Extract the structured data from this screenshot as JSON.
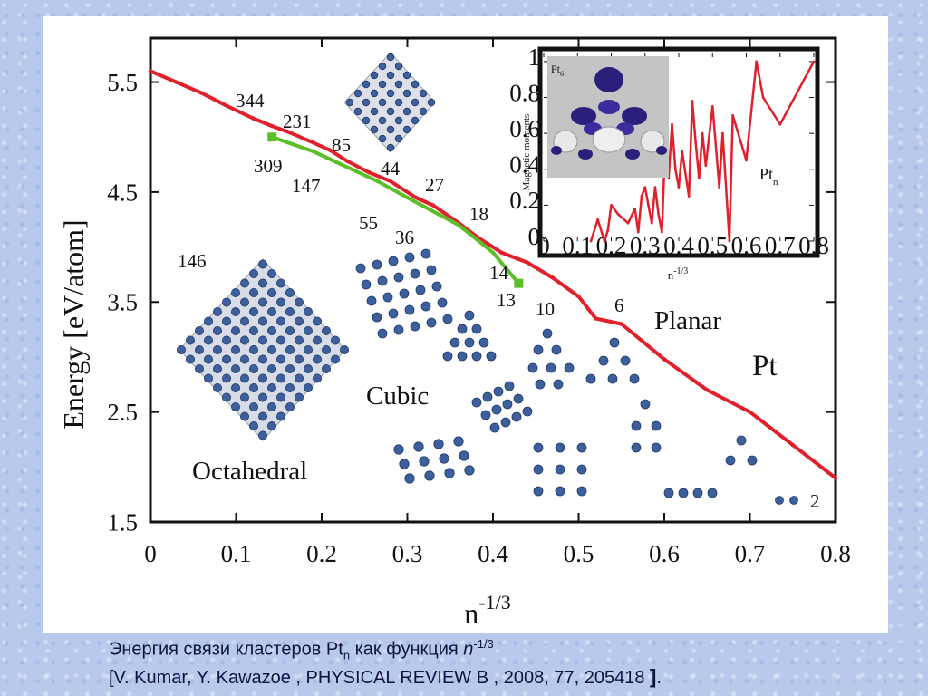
{
  "chart_data": [
    {
      "type": "line",
      "xlabel": "n",
      "xlabel_sup": "-1/3",
      "ylabel": "Energy [eV/atom]",
      "xlim": [
        0,
        0.8
      ],
      "ylim": [
        1.5,
        5.9
      ],
      "x_ticks": [
        "0",
        "0.1",
        "0.2",
        "0.3",
        "0.4",
        "0.5",
        "0.6",
        "0.7",
        "0.8"
      ],
      "y_ticks": [
        "1.5",
        "2.5",
        "3.5",
        "4.5",
        "5.5"
      ],
      "series": [
        {
          "color": "#e0202a",
          "x": [
            0.0,
            0.03,
            0.06,
            0.09,
            0.12,
            0.142,
            0.16,
            0.19,
            0.21,
            0.23,
            0.255,
            0.28,
            0.31,
            0.33,
            0.36,
            0.38,
            0.41,
            0.44,
            0.47,
            0.5,
            0.52,
            0.55,
            0.6,
            0.65,
            0.7,
            0.75,
            0.8
          ],
          "y": [
            5.6,
            5.5,
            5.4,
            5.28,
            5.17,
            5.1,
            5.05,
            4.95,
            4.88,
            4.78,
            4.68,
            4.6,
            4.45,
            4.38,
            4.22,
            4.1,
            3.95,
            3.86,
            3.72,
            3.55,
            3.35,
            3.3,
            2.98,
            2.7,
            2.5,
            2.2,
            1.9
          ]
        },
        {
          "color": "#5cbf2a",
          "x": [
            0.142,
            0.19,
            0.265,
            0.3,
            0.36,
            0.4,
            0.43
          ],
          "y": [
            5.0,
            4.87,
            4.6,
            4.45,
            4.2,
            3.95,
            3.67
          ]
        }
      ],
      "annotations": [
        "344",
        "231",
        "85",
        "309",
        "147",
        "44",
        "27",
        "18",
        "55",
        "36",
        "14",
        "13",
        "10",
        "6",
        "2",
        "146"
      ],
      "region_labels": [
        "Octahedral",
        "Cubic",
        "Planar",
        "Pt"
      ]
    },
    {
      "type": "line",
      "xlabel": "n",
      "xlabel_sup": "-1/3",
      "ylabel": "Magnetic moments",
      "xlim": [
        0,
        0.8
      ],
      "ylim": [
        0,
        1.05
      ],
      "x_ticks": [
        "0",
        "0.1",
        "0.2",
        "0.3",
        "0.4",
        "0.5",
        "0.6",
        "0.7",
        "0.8"
      ],
      "y_ticks": [
        "0",
        "0.2",
        "0.4",
        "0.6",
        "0.8",
        "1"
      ],
      "label": "Pt",
      "label_sub": "n",
      "image_label": "Pt",
      "image_label_sub": "6",
      "series": [
        {
          "color": "#e0202a",
          "x": [
            0.14,
            0.16,
            0.18,
            0.19,
            0.2,
            0.22,
            0.25,
            0.27,
            0.28,
            0.29,
            0.3,
            0.31,
            0.32,
            0.33,
            0.34,
            0.35,
            0.36,
            0.37,
            0.38,
            0.39,
            0.4,
            0.41,
            0.43,
            0.44,
            0.45,
            0.46,
            0.47,
            0.48,
            0.5,
            0.52,
            0.53,
            0.55,
            0.56,
            0.6,
            0.63,
            0.65,
            0.7,
            0.8
          ],
          "y": [
            0.0,
            0.12,
            0.0,
            0.06,
            0.2,
            0.15,
            0.1,
            0.18,
            0.05,
            0.25,
            0.3,
            0.2,
            0.1,
            0.3,
            0.15,
            0.05,
            0.55,
            0.35,
            0.65,
            0.4,
            0.3,
            0.5,
            0.25,
            0.78,
            0.55,
            0.35,
            0.6,
            0.42,
            0.75,
            0.3,
            0.6,
            0.0,
            0.7,
            0.45,
            1.0,
            0.8,
            0.65,
            1.0
          ]
        }
      ]
    }
  ],
  "caption": {
    "line1_prefix": "Энергия связи кластеров Pt",
    "line1_sub": "n",
    "line1_mid": " как функция ",
    "line1_var": "n",
    "line1_sup": "-1/3",
    "line2_main": "[V. Kumar, Y. Kawazoe , PHYSICAL REVIEW B , 2008, 77, 205418 ",
    "line2_bracket": "]",
    "line2_end": "."
  }
}
